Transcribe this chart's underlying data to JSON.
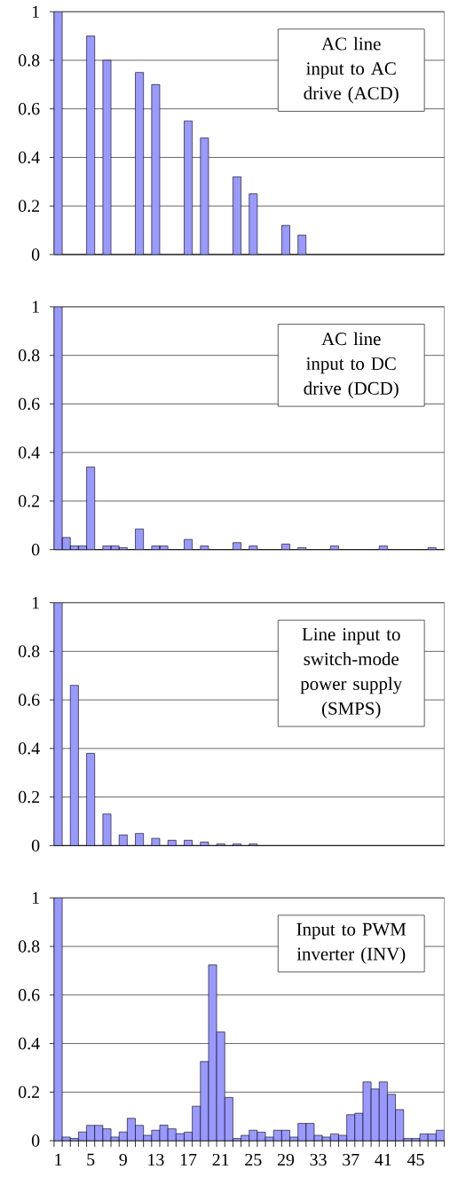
{
  "chart_data": [
    {
      "type": "bar",
      "title": "AC line input to AC drive (ACD)",
      "tick_labels": "y",
      "color": "#9999ff",
      "grid": "y",
      "ylim": [
        0,
        1
      ],
      "yticks": [
        0,
        0.2,
        0.4,
        0.6,
        0.8,
        1
      ],
      "categories": [
        "1",
        null,
        null,
        null,
        "5",
        null,
        null,
        null,
        "9",
        null,
        null,
        null,
        "13",
        null,
        null,
        null,
        "17",
        null,
        null,
        null,
        "21",
        null,
        null,
        null,
        "25",
        null,
        null,
        null,
        "29",
        null,
        null,
        null,
        "33",
        null,
        null,
        null,
        "37",
        null,
        null,
        null,
        "41",
        null,
        null,
        null,
        "45",
        null,
        null,
        null
      ],
      "values": [
        1,
        0,
        0,
        0,
        0.9,
        0,
        0.8,
        0,
        0,
        0,
        0.75,
        0,
        0.7,
        0,
        0,
        0,
        0.55,
        0,
        0.48,
        0,
        0,
        0,
        0.32,
        0,
        0.25,
        0,
        0,
        0,
        0.12,
        0,
        0.08,
        0,
        0,
        0,
        0,
        0,
        0,
        0,
        0,
        0,
        0,
        0,
        0,
        0,
        0,
        0,
        0,
        0
      ]
    },
    {
      "type": "bar",
      "title": "AC line input to DC drive (DCD)",
      "tick_labels": "y",
      "color": "#9999ff",
      "grid": "y",
      "ylim": [
        0,
        1
      ],
      "yticks": [
        0,
        0.2,
        0.4,
        0.6,
        0.8,
        1
      ],
      "categories": [
        "1",
        null,
        null,
        null,
        "5",
        null,
        null,
        null,
        "9",
        null,
        null,
        null,
        "13",
        null,
        null,
        null,
        "17",
        null,
        null,
        null,
        "21",
        null,
        null,
        null,
        "25",
        null,
        null,
        null,
        "29",
        null,
        null,
        null,
        "33",
        null,
        null,
        null,
        "37",
        null,
        null,
        null,
        "41",
        null,
        null,
        null,
        "45",
        null,
        null,
        null
      ],
      "values": [
        1,
        0.05,
        0.015,
        0.015,
        0.34,
        0,
        0.015,
        0.015,
        0.008,
        0,
        0.085,
        0,
        0.015,
        0.015,
        0,
        0,
        0.042,
        0,
        0.015,
        0,
        0,
        0,
        0.029,
        0,
        0.015,
        0,
        0,
        0,
        0.023,
        0,
        0.008,
        0,
        0,
        0,
        0.015,
        0,
        0,
        0,
        0,
        0,
        0.015,
        0,
        0,
        0,
        0,
        0,
        0.008,
        0
      ]
    },
    {
      "type": "bar",
      "title": "Line input to switch-mode power supply (SMPS)",
      "tick_labels": "y",
      "color": "#9999ff",
      "grid": "y",
      "ylim": [
        0,
        1
      ],
      "yticks": [
        0,
        0.2,
        0.4,
        0.6,
        0.8,
        1
      ],
      "categories": [
        "1",
        null,
        null,
        null,
        "5",
        null,
        null,
        null,
        "9",
        null,
        null,
        null,
        "13",
        null,
        null,
        null,
        "17",
        null,
        null,
        null,
        "21",
        null,
        null,
        null,
        "25",
        null,
        null,
        null,
        "29",
        null,
        null,
        null,
        "33",
        null,
        null,
        null,
        "37",
        null,
        null,
        null,
        "41",
        null,
        null,
        null,
        "45",
        null,
        null,
        null
      ],
      "values": [
        1,
        0,
        0.66,
        0,
        0.38,
        0,
        0.13,
        0,
        0.044,
        0,
        0.05,
        0,
        0.03,
        0,
        0.022,
        0,
        0.022,
        0,
        0.015,
        0,
        0.007,
        0,
        0.007,
        0,
        0.007,
        0,
        0,
        0,
        0,
        0,
        0,
        0,
        0,
        0,
        0,
        0,
        0,
        0,
        0,
        0,
        0,
        0,
        0,
        0,
        0,
        0,
        0,
        0
      ]
    },
    {
      "type": "bar",
      "title": "Input to PWM inverter (INV)",
      "color": "#9999ff",
      "grid": "y",
      "ylim": [
        0,
        1
      ],
      "yticks": [
        0,
        0.2,
        0.4,
        0.6,
        0.8,
        1
      ],
      "categories": [
        "1",
        null,
        null,
        null,
        "5",
        null,
        null,
        null,
        "9",
        null,
        null,
        null,
        "13",
        null,
        null,
        null,
        "17",
        null,
        null,
        null,
        "21",
        null,
        null,
        null,
        "25",
        null,
        null,
        null,
        "29",
        null,
        null,
        null,
        "33",
        null,
        null,
        null,
        "37",
        null,
        null,
        null,
        "41",
        null,
        null,
        null,
        "45",
        null,
        null,
        null
      ],
      "values": [
        1,
        0.015,
        0.009,
        0.036,
        0.063,
        0.063,
        0.049,
        0.015,
        0.036,
        0.092,
        0.063,
        0.022,
        0.043,
        0.064,
        0.049,
        0.029,
        0.035,
        0.142,
        0.326,
        0.724,
        0.448,
        0.178,
        0.009,
        0.022,
        0.043,
        0.035,
        0.015,
        0.043,
        0.043,
        0.015,
        0.071,
        0.071,
        0.022,
        0.015,
        0.028,
        0.022,
        0.107,
        0.113,
        0.242,
        0.213,
        0.242,
        0.191,
        0.128,
        0.009,
        0.009,
        0.028,
        0.028,
        0.043
      ]
    }
  ]
}
